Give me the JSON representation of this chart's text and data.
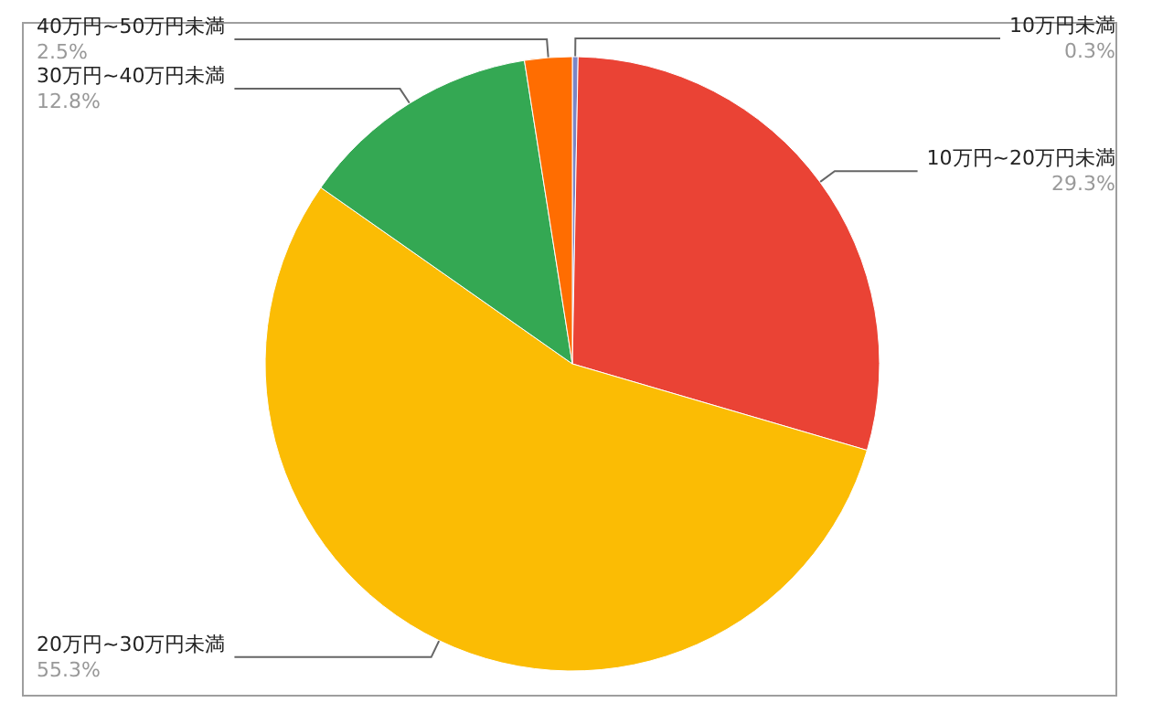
{
  "chart_data": {
    "type": "pie",
    "categories": [
      "10万円未満",
      "10万円~20万円未満",
      "20万円~30万円未満",
      "30万円~40万円未満",
      "40万円~50万円未満"
    ],
    "values": [
      0.3,
      29.3,
      55.3,
      12.8,
      2.5
    ],
    "colors": [
      "#7b86c6",
      "#ea4335",
      "#fbbc04",
      "#34a853",
      "#ff6d01"
    ],
    "value_labels": [
      "0.3%",
      "29.3%",
      "55.3%",
      "12.8%",
      "2.5%"
    ]
  }
}
